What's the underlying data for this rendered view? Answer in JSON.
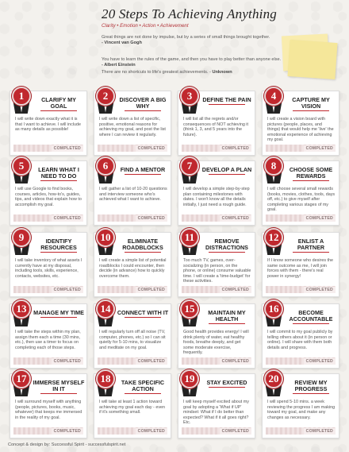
{
  "header": {
    "title": "20 Steps To Achieving Anything",
    "subtitle": "Clarity • Emotion • Action • Achievement",
    "quotes": [
      {
        "text": "Great things are not done by impulse, but by a series of small things brought together.",
        "author": "- Vincent van Gogh"
      },
      {
        "text": "You have to learn the rules of the game, and then you have to play better than anyone else.",
        "author": "- Albert Einstein"
      },
      {
        "text": "There are no shortcuts to life's greatest achievements. -",
        "author": "Unknown"
      }
    ]
  },
  "completed_label": "COMPLETED",
  "steps": [
    {
      "num": "1",
      "title": "Clarify my goal",
      "body": "I will write down exactly what it is that I want to achieve. I will include as many details as possible!"
    },
    {
      "num": "2",
      "title": "Discover a big why",
      "body": "I will write down a list of specific, positive, emotional reasons for achieving my goal, and post the list where I can review it regularly."
    },
    {
      "num": "3",
      "title": "Define the pain",
      "body": "I will list all the regrets and/or consequences of NOT achieving it (think 1, 3, and 5 years into the future)."
    },
    {
      "num": "4",
      "title": "Capture my vision",
      "body": "I will create a vision board with pictures (people, places, and things) that would help me 'live' the emotional experience of achieving my goal."
    },
    {
      "num": "5",
      "title": "Learn what I need to do",
      "body": "I will use Google to find books, courses, articles, how-to's, guides, tips, and videos that explain how to accomplish my goal."
    },
    {
      "num": "6",
      "title": "Find a mentor",
      "body": "I will gather a list of 10-20 questions and interview someone who's achieved what I want to achieve."
    },
    {
      "num": "7",
      "title": "Develop a plan",
      "body": "I will develop a simple step-by-step plan containing milestones with dates. I won't know all the details initially, I just need a rough guide."
    },
    {
      "num": "8",
      "title": "Choose some rewards",
      "body": "I will choose several small rewards (books, movies, clothes, tools, days off, etc.) to give myself after completing various stages of my goal."
    },
    {
      "num": "9",
      "title": "Identify resources",
      "body": "I will take inventory of what assets I currently have at my disposal, including tools, skills, experience, contacts, websites, etc."
    },
    {
      "num": "10",
      "title": "Eliminate roadblocks",
      "body": "I will create a simple list of potential roadblocks I could encounter, then decide (in advance) how to quickly overcome them."
    },
    {
      "num": "11",
      "title": "Remove distractions",
      "body": "Too much TV, games, over-socializing (in person, on the phone, or online) consume valuable time. I will create a 'time-budget' for these activities."
    },
    {
      "num": "12",
      "title": "Enlist a partner",
      "body": "If I know someone who desires the same outcome as me, I will join forces with them - there's real power in synergy!"
    },
    {
      "num": "13",
      "title": "Manage my time",
      "body": "I will take the steps within my plan, assign them each a time (30 mins, etc.), then use a timer to focus on completing each of those steps."
    },
    {
      "num": "14",
      "title": "Connect with it",
      "body": "I will regularly turn off all noise (TV, computer, phones, etc.) so I can sit quietly for 5-10 mins, to visualize and meditate on my goal."
    },
    {
      "num": "15",
      "title": "Maintain my health",
      "body": "Good health provides energy! I will drink plenty of water, eat healthy foods, breathe deeply, and get some moderate exercise, frequently."
    },
    {
      "num": "16",
      "title": "Become accountable",
      "body": "I will commit to my goal publicly by telling others about it (in person or online). I will share with them both details and progress."
    },
    {
      "num": "17",
      "title": "Immerse myself in it",
      "body": "I will surround myself with anything (people, pictures, books, music, whatever) that keeps me immersed in the reality of my goal."
    },
    {
      "num": "18",
      "title": "Take specific action",
      "body": "I will take at least 1 action toward achieving my goal each day - even if it's something small."
    },
    {
      "num": "19",
      "title": "Stay excited",
      "body": "I will keep myself excited about my goal by adopting a 'What if UP' mindset: What if I do better than expected? What if it all goes right? Etc."
    },
    {
      "num": "20",
      "title": "Review my progress",
      "body": "I will spend 5-10 mins. a week reviewing the progress I am making toward my goal, and make any changes as necessary."
    }
  ],
  "footer": "Concept & design by: Successful Spirit - successfulspirit.net"
}
